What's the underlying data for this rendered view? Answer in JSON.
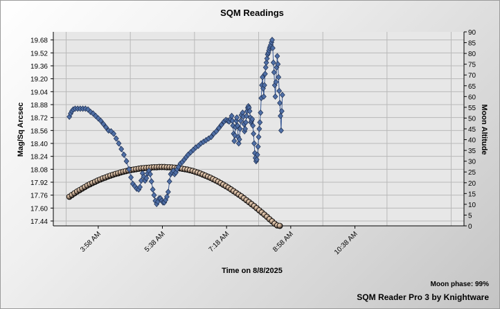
{
  "chart_data": {
    "type": "line",
    "title": "SQM Readings",
    "xlabel": "Time on 8/8/2025",
    "ylabel": "Mag/Sq Arcsec",
    "y2label": "Moon Altitude",
    "x_unit": "minutes since midnight on 8/8/2025",
    "xlim": [
      168,
      808
    ],
    "ylim": [
      17.38,
      19.78
    ],
    "y2lim": [
      0,
      90
    ],
    "x_ticks": [
      {
        "value": 238,
        "label": "3:58 AM"
      },
      {
        "value": 338,
        "label": "5:38 AM"
      },
      {
        "value": 438,
        "label": "7:18 AM"
      },
      {
        "value": 538,
        "label": "8:58 AM"
      },
      {
        "value": 638,
        "label": "10:38 AM"
      }
    ],
    "x_gridlines": [
      188,
      288,
      388,
      488,
      588,
      688,
      788
    ],
    "y_ticks": [
      17.44,
      17.6,
      17.76,
      17.92,
      18.08,
      18.24,
      18.4,
      18.56,
      18.72,
      18.88,
      19.04,
      19.2,
      19.36,
      19.52,
      19.68
    ],
    "y2_ticks": [
      0,
      5,
      10,
      15,
      20,
      25,
      30,
      35,
      40,
      45,
      50,
      55,
      60,
      65,
      70,
      75,
      80,
      85,
      90
    ],
    "grid": true,
    "colors": {
      "sqm_marker": "#4f6fa6",
      "sqm_line": "#3a5a96",
      "moon_marker": "#000000",
      "moon_highlight": "#f7dcc0"
    },
    "series": [
      {
        "name": "SQM",
        "axis": "left",
        "points": [
          [
            193,
            18.73
          ],
          [
            195,
            18.77
          ],
          [
            197,
            18.8
          ],
          [
            199,
            18.82
          ],
          [
            202,
            18.83
          ],
          [
            206,
            18.83
          ],
          [
            210,
            18.83
          ],
          [
            214,
            18.83
          ],
          [
            218,
            18.83
          ],
          [
            222,
            18.82
          ],
          [
            226,
            18.79
          ],
          [
            230,
            18.77
          ],
          [
            234,
            18.74
          ],
          [
            238,
            18.71
          ],
          [
            242,
            18.68
          ],
          [
            246,
            18.64
          ],
          [
            250,
            18.6
          ],
          [
            254,
            18.56
          ],
          [
            258,
            18.55
          ],
          [
            262,
            18.52
          ],
          [
            266,
            18.46
          ],
          [
            270,
            18.4
          ],
          [
            274,
            18.33
          ],
          [
            278,
            18.26
          ],
          [
            282,
            18.18
          ],
          [
            286,
            18.08
          ],
          [
            289,
            17.98
          ],
          [
            292,
            17.9
          ],
          [
            295,
            17.87
          ],
          [
            298,
            17.84
          ],
          [
            301,
            17.83
          ],
          [
            303,
            17.86
          ],
          [
            305,
            17.94
          ],
          [
            307,
            18.03
          ],
          [
            309,
            17.99
          ],
          [
            311,
            17.94
          ],
          [
            313,
            17.97
          ],
          [
            315,
            18.03
          ],
          [
            317,
            18.06
          ],
          [
            319,
            18.02
          ],
          [
            321,
            17.93
          ],
          [
            323,
            17.83
          ],
          [
            325,
            17.76
          ],
          [
            327,
            17.69
          ],
          [
            329,
            17.65
          ],
          [
            331,
            17.68
          ],
          [
            333,
            17.72
          ],
          [
            335,
            17.72
          ],
          [
            337,
            17.69
          ],
          [
            339,
            17.67
          ],
          [
            341,
            17.67
          ],
          [
            343,
            17.7
          ],
          [
            345,
            17.74
          ],
          [
            347,
            17.8
          ],
          [
            349,
            17.93
          ],
          [
            351,
            18.02
          ],
          [
            353,
            18.04
          ],
          [
            355,
            18.06
          ],
          [
            357,
            18.02
          ],
          [
            359,
            18.04
          ],
          [
            361,
            18.08
          ],
          [
            363,
            18.11
          ],
          [
            366,
            18.15
          ],
          [
            369,
            18.17
          ],
          [
            372,
            18.2
          ],
          [
            375,
            18.23
          ],
          [
            378,
            18.26
          ],
          [
            382,
            18.29
          ],
          [
            386,
            18.32
          ],
          [
            390,
            18.35
          ],
          [
            394,
            18.37
          ],
          [
            398,
            18.4
          ],
          [
            402,
            18.42
          ],
          [
            406,
            18.44
          ],
          [
            410,
            18.46
          ],
          [
            414,
            18.48
          ],
          [
            418,
            18.52
          ],
          [
            422,
            18.55
          ],
          [
            426,
            18.59
          ],
          [
            430,
            18.63
          ],
          [
            434,
            18.67
          ],
          [
            437,
            18.69
          ],
          [
            440,
            18.68
          ],
          [
            442,
            18.67
          ],
          [
            444,
            18.7
          ],
          [
            446,
            18.74
          ],
          [
            447,
            18.68
          ],
          [
            448,
            18.62
          ],
          [
            449,
            18.52
          ],
          [
            450,
            18.43
          ],
          [
            451,
            18.5
          ],
          [
            452,
            18.6
          ],
          [
            453,
            18.68
          ],
          [
            454,
            18.72
          ],
          [
            455,
            18.62
          ],
          [
            456,
            18.48
          ],
          [
            457,
            18.4
          ],
          [
            458,
            18.45
          ],
          [
            459,
            18.58
          ],
          [
            460,
            18.68
          ],
          [
            461,
            18.75
          ],
          [
            463,
            18.78
          ],
          [
            464,
            18.73
          ],
          [
            465,
            18.64
          ],
          [
            466,
            18.55
          ],
          [
            467,
            18.58
          ],
          [
            468,
            18.66
          ],
          [
            469,
            18.74
          ],
          [
            470,
            18.8
          ],
          [
            471,
            18.84
          ],
          [
            472,
            18.86
          ],
          [
            473,
            18.84
          ],
          [
            474,
            18.8
          ],
          [
            475,
            18.72
          ],
          [
            476,
            18.66
          ],
          [
            477,
            18.68
          ],
          [
            478,
            18.7
          ],
          [
            479,
            18.62
          ],
          [
            480,
            18.52
          ],
          [
            481,
            18.4
          ],
          [
            482,
            18.28
          ],
          [
            483,
            18.22
          ],
          [
            484,
            18.18
          ],
          [
            485,
            18.2
          ],
          [
            486,
            18.26
          ],
          [
            487,
            18.36
          ],
          [
            488,
            18.48
          ],
          [
            489,
            18.58
          ],
          [
            490,
            18.66
          ],
          [
            491,
            18.78
          ],
          [
            492,
            18.96
          ],
          [
            493,
            19.12
          ],
          [
            494,
            19.22
          ],
          [
            495,
            19.08
          ],
          [
            496,
            18.98
          ],
          [
            497,
            19.12
          ],
          [
            498,
            19.26
          ],
          [
            499,
            19.34
          ],
          [
            500,
            19.4
          ],
          [
            501,
            19.45
          ],
          [
            502,
            19.5
          ],
          [
            503,
            19.52
          ],
          [
            504,
            19.55
          ],
          [
            505,
            19.58
          ],
          [
            506,
            19.6
          ],
          [
            507,
            19.62
          ],
          [
            508,
            19.65
          ],
          [
            509,
            19.68
          ],
          [
            510,
            19.58
          ],
          [
            511,
            19.4
          ],
          [
            512,
            19.28
          ],
          [
            513,
            19.12
          ],
          [
            514,
            18.98
          ],
          [
            515,
            19.16
          ],
          [
            516,
            19.34
          ],
          [
            517,
            19.48
          ],
          [
            518,
            19.38
          ],
          [
            519,
            19.22
          ],
          [
            520,
            19.05
          ],
          [
            521,
            18.9
          ],
          [
            522,
            18.74
          ],
          [
            523,
            18.56
          ],
          [
            524,
            18.8
          ],
          [
            525,
            19.0
          ]
        ]
      },
      {
        "name": "Moon Altitude",
        "axis": "right",
        "points": [
          [
            193,
            13.5
          ],
          [
            197,
            14.3
          ],
          [
            201,
            15.1
          ],
          [
            205,
            15.9
          ],
          [
            209,
            16.6
          ],
          [
            213,
            17.3
          ],
          [
            217,
            18.0
          ],
          [
            221,
            18.7
          ],
          [
            225,
            19.3
          ],
          [
            229,
            19.9
          ],
          [
            233,
            20.4
          ],
          [
            237,
            21.0
          ],
          [
            241,
            21.5
          ],
          [
            245,
            22.0
          ],
          [
            249,
            22.4
          ],
          [
            253,
            22.9
          ],
          [
            257,
            23.3
          ],
          [
            261,
            23.7
          ],
          [
            265,
            24.1
          ],
          [
            269,
            24.4
          ],
          [
            273,
            24.8
          ],
          [
            277,
            25.1
          ],
          [
            281,
            25.4
          ],
          [
            285,
            25.7
          ],
          [
            289,
            25.9
          ],
          [
            293,
            26.1
          ],
          [
            297,
            26.3
          ],
          [
            301,
            26.5
          ],
          [
            305,
            26.7
          ],
          [
            309,
            26.8
          ],
          [
            313,
            26.9
          ],
          [
            317,
            27.0
          ],
          [
            321,
            27.1
          ],
          [
            325,
            27.2
          ],
          [
            329,
            27.2
          ],
          [
            333,
            27.3
          ],
          [
            337,
            27.3
          ],
          [
            341,
            27.3
          ],
          [
            345,
            27.2
          ],
          [
            349,
            27.2
          ],
          [
            353,
            27.1
          ],
          [
            357,
            27.0
          ],
          [
            361,
            26.9
          ],
          [
            365,
            26.7
          ],
          [
            369,
            26.5
          ],
          [
            373,
            26.3
          ],
          [
            377,
            26.1
          ],
          [
            381,
            25.8
          ],
          [
            385,
            25.5
          ],
          [
            389,
            25.1
          ],
          [
            393,
            24.7
          ],
          [
            397,
            24.3
          ],
          [
            401,
            23.8
          ],
          [
            405,
            23.3
          ],
          [
            409,
            22.8
          ],
          [
            413,
            22.3
          ],
          [
            417,
            21.7
          ],
          [
            421,
            21.1
          ],
          [
            425,
            20.5
          ],
          [
            429,
            19.8
          ],
          [
            433,
            19.1
          ],
          [
            437,
            18.4
          ],
          [
            441,
            17.7
          ],
          [
            445,
            16.9
          ],
          [
            449,
            16.1
          ],
          [
            453,
            15.3
          ],
          [
            457,
            14.5
          ],
          [
            461,
            13.7
          ],
          [
            465,
            12.8
          ],
          [
            469,
            11.9
          ],
          [
            473,
            11.0
          ],
          [
            477,
            10.1
          ],
          [
            481,
            9.2
          ],
          [
            485,
            8.2
          ],
          [
            489,
            7.2
          ],
          [
            493,
            6.2
          ],
          [
            497,
            5.2
          ],
          [
            501,
            4.2
          ],
          [
            505,
            3.1
          ],
          [
            509,
            2.1
          ],
          [
            513,
            1.0
          ],
          [
            517,
            0.2
          ],
          [
            521,
            0.0
          ]
        ]
      }
    ]
  },
  "footer": {
    "moon_phase": "Moon phase: 99%",
    "credit": "SQM Reader Pro 3 by Knightware"
  }
}
